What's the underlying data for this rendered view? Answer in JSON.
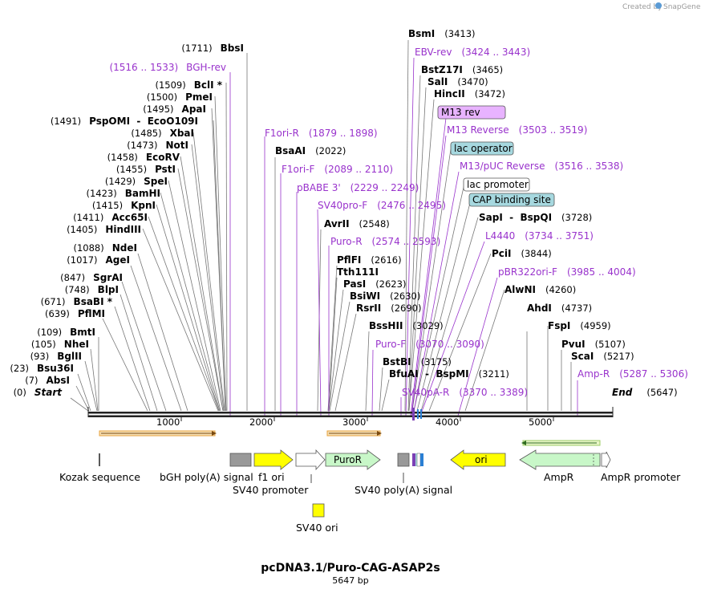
{
  "branding": {
    "created_by": "Created by",
    "product": "SnapGene"
  },
  "title": "pcDNA3.1/Puro-CAG-ASAP2s",
  "subtitle": "5647 bp",
  "map_length": 5647,
  "scale_ticks": [
    "1000",
    "2000",
    "3000",
    "4000",
    "5000"
  ],
  "left_sites": [
    {
      "pos": "(1711)",
      "name": "BbsI",
      "kind": "enzyme"
    },
    {
      "pos": "(1516 .. 1533)",
      "name": "BGH-rev",
      "kind": "primer"
    },
    {
      "pos": "(1509)",
      "name": "BclI *",
      "kind": "enzyme"
    },
    {
      "pos": "(1500)",
      "name": "PmeI",
      "kind": "enzyme"
    },
    {
      "pos": "(1495)",
      "name": "ApaI",
      "kind": "enzyme"
    },
    {
      "pos": "(1491)",
      "name": "PspOMI  -  EcoO109I",
      "kind": "enzyme"
    },
    {
      "pos": "(1485)",
      "name": "XbaI",
      "kind": "enzyme"
    },
    {
      "pos": "(1473)",
      "name": "NotI",
      "kind": "enzyme"
    },
    {
      "pos": "(1458)",
      "name": "EcoRV",
      "kind": "enzyme"
    },
    {
      "pos": "(1455)",
      "name": "PstI",
      "kind": "enzyme"
    },
    {
      "pos": "(1429)",
      "name": "SpeI",
      "kind": "enzyme"
    },
    {
      "pos": "(1423)",
      "name": "BamHI",
      "kind": "enzyme"
    },
    {
      "pos": "(1415)",
      "name": "KpnI",
      "kind": "enzyme"
    },
    {
      "pos": "(1411)",
      "name": "Acc65I",
      "kind": "enzyme"
    },
    {
      "pos": "(1405)",
      "name": "HindIII",
      "kind": "enzyme"
    },
    {
      "pos": "(1088)",
      "name": "NdeI",
      "kind": "enzyme"
    },
    {
      "pos": "(1017)",
      "name": "AgeI",
      "kind": "enzyme"
    },
    {
      "pos": "(847)",
      "name": "SgrAI",
      "kind": "enzyme"
    },
    {
      "pos": "(748)",
      "name": "BlpI",
      "kind": "enzyme"
    },
    {
      "pos": "(671)",
      "name": "BsaBI *",
      "kind": "enzyme"
    },
    {
      "pos": "(639)",
      "name": "PflMI",
      "kind": "enzyme"
    },
    {
      "pos": "(109)",
      "name": "BmtI",
      "kind": "enzyme"
    },
    {
      "pos": "(105)",
      "name": "NheI",
      "kind": "enzyme"
    },
    {
      "pos": "(93)",
      "name": "BglII",
      "kind": "enzyme"
    },
    {
      "pos": "(23)",
      "name": "Bsu36I",
      "kind": "enzyme"
    },
    {
      "pos": "(7)",
      "name": "AbsI",
      "kind": "enzyme"
    },
    {
      "pos": "(0)",
      "name": "Start",
      "kind": "start"
    }
  ],
  "mid_sites": [
    {
      "name": "F1ori-R",
      "pos": "(1879 .. 1898)",
      "kind": "primer"
    },
    {
      "name": "BsaAI",
      "pos": "(2022)",
      "kind": "enzyme"
    },
    {
      "name": "F1ori-F",
      "pos": "(2089 .. 2110)",
      "kind": "primer"
    },
    {
      "name": "pBABE 3'",
      "pos": "(2229 .. 2249)",
      "kind": "primer"
    },
    {
      "name": "SV40pro-F",
      "pos": "(2476 .. 2495)",
      "kind": "primer"
    },
    {
      "name": "AvrII",
      "pos": "(2548)",
      "kind": "enzyme"
    },
    {
      "name": "Puro-R",
      "pos": "(2574 .. 2593)",
      "kind": "primer"
    },
    {
      "name": "PflFI",
      "pos": "(2616)",
      "kind": "enzyme"
    },
    {
      "name": "Tth111I",
      "pos": "",
      "kind": "enzyme"
    },
    {
      "name": "PasI",
      "pos": "(2623)",
      "kind": "enzyme"
    },
    {
      "name": "BsiWI",
      "pos": "(2630)",
      "kind": "enzyme"
    },
    {
      "name": "RsrII",
      "pos": "(2690)",
      "kind": "enzyme"
    },
    {
      "name": "BssHII",
      "pos": "(3029)",
      "kind": "enzyme"
    },
    {
      "name": "Puro-F",
      "pos": "(3070 .. 3090)",
      "kind": "primer"
    },
    {
      "name": "BstBI",
      "pos": "(3175)",
      "kind": "enzyme"
    },
    {
      "name": "BfuAI  -  BspMI",
      "pos": "(3211)",
      "kind": "enzyme"
    },
    {
      "name": "SV40pA-R",
      "pos": "(3370 .. 3389)",
      "kind": "primer"
    }
  ],
  "right_sites": [
    {
      "name": "BsmI",
      "pos": "(3413)",
      "kind": "enzyme"
    },
    {
      "name": "EBV-rev",
      "pos": "(3424 .. 3443)",
      "kind": "primer"
    },
    {
      "name": "BstZ17I",
      "pos": "(3465)",
      "kind": "enzyme"
    },
    {
      "name": "SalI",
      "pos": "(3470)",
      "kind": "enzyme"
    },
    {
      "name": "HincII",
      "pos": "(3472)",
      "kind": "enzyme"
    },
    {
      "name": "M13 rev",
      "pos": "",
      "kind": "primer-box"
    },
    {
      "name": "M13 Reverse",
      "pos": "(3503 .. 3519)",
      "kind": "primer"
    },
    {
      "name": "lac operator",
      "pos": "",
      "kind": "feature-teal"
    },
    {
      "name": "M13/pUC Reverse",
      "pos": "(3516 .. 3538)",
      "kind": "primer"
    },
    {
      "name": "lac promoter",
      "pos": "",
      "kind": "feature-white"
    },
    {
      "name": "CAP binding site",
      "pos": "",
      "kind": "feature-teal"
    },
    {
      "name": "SapI  -  BspQI",
      "pos": "(3728)",
      "kind": "enzyme"
    },
    {
      "name": "L4440",
      "pos": "(3734 .. 3751)",
      "kind": "primer"
    },
    {
      "name": "PciI",
      "pos": "(3844)",
      "kind": "enzyme"
    },
    {
      "name": "pBR322ori-F",
      "pos": "(3985 .. 4004)",
      "kind": "primer"
    },
    {
      "name": "AlwNI",
      "pos": "(4260)",
      "kind": "enzyme"
    },
    {
      "name": "AhdI",
      "pos": "(4737)",
      "kind": "enzyme"
    },
    {
      "name": "FspI",
      "pos": "(4959)",
      "kind": "enzyme"
    },
    {
      "name": "PvuI",
      "pos": "(5107)",
      "kind": "enzyme"
    },
    {
      "name": "ScaI",
      "pos": "(5217)",
      "kind": "enzyme"
    },
    {
      "name": "Amp-R",
      "pos": "(5287 .. 5306)",
      "kind": "primer"
    },
    {
      "name": "End",
      "pos": "(5647)",
      "kind": "end"
    }
  ],
  "features": {
    "kozak": "Kozak sequence",
    "bgh": "bGH poly(A) signal",
    "f1": "f1 ori",
    "sv40prom": "SV40 promoter",
    "puro": "PuroR",
    "sv40pa": "SV40 poly(A) signal",
    "ori": "ori",
    "ampr": "AmpR",
    "amprprom": "AmpR promoter",
    "sv40ori": "SV40 ori"
  },
  "colors": {
    "primer": "#9933cc",
    "orf": "#e8a33d",
    "orf_green": "#7cb342",
    "yellow": "#ffff00",
    "puro": "#c8f7c8",
    "gray": "#999999",
    "teal": "#a6d8df",
    "m13": "#e8b3ff"
  }
}
